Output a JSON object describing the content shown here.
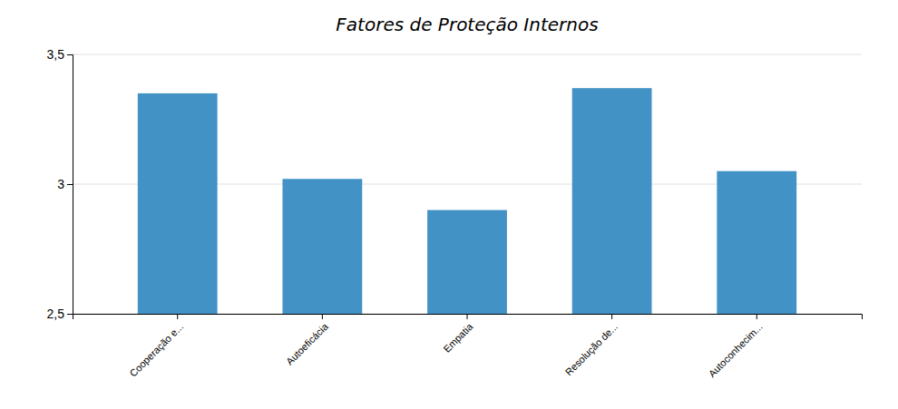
{
  "chart_data": {
    "type": "bar",
    "title": "Fatores de Proteção Internos",
    "categories": [
      "Cooperação e...",
      "Autoeficácia",
      "Empatia",
      "Resolução de...",
      "Autoconhecim..."
    ],
    "values": [
      3.35,
      3.02,
      2.9,
      3.37,
      3.05
    ],
    "color": "#4292c6",
    "ylim": [
      2.5,
      3.5
    ],
    "yticks": [
      {
        "value": 2.5,
        "label": "2,5"
      },
      3,
      {
        "value": 3.5,
        "label": "3,5"
      }
    ],
    "grid": true
  }
}
